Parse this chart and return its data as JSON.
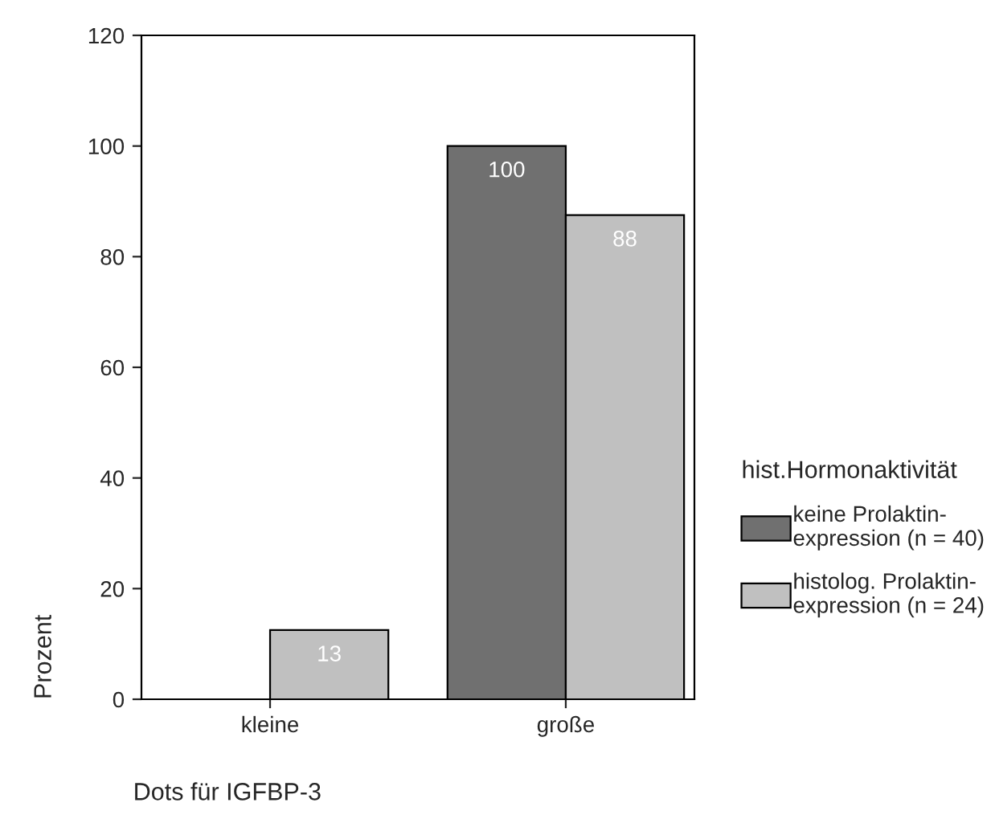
{
  "chart_data": {
    "type": "bar",
    "xlabel": "Dots für IGFBP-3",
    "ylabel": "Prozent",
    "legend_title": "hist.Hormonaktivität",
    "categories": [
      "kleine",
      "große"
    ],
    "series": [
      {
        "name": "keine Prolaktin-\nexpression (n = 40)",
        "color": "#707070",
        "values": [
          0,
          100
        ],
        "value_labels": [
          null,
          "100"
        ]
      },
      {
        "name": "histolog. Prolaktin-\nexpression (n = 24)",
        "color": "#c0c0c0",
        "values": [
          12.5,
          87.5
        ],
        "value_labels": [
          "13",
          "88"
        ]
      }
    ],
    "ylim": [
      0,
      120
    ],
    "yticks": [
      0,
      20,
      40,
      60,
      80,
      100,
      120
    ],
    "grid": false,
    "legend": "right"
  }
}
